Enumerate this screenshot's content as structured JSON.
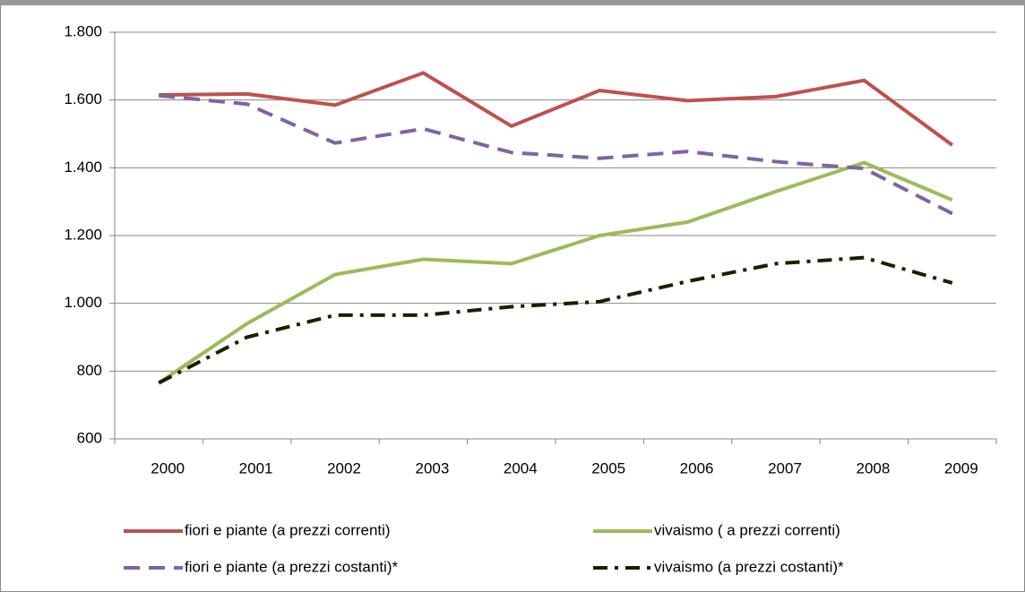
{
  "chart_data": {
    "type": "line",
    "categories": [
      "2000",
      "2001",
      "2002",
      "2003",
      "2004",
      "2005",
      "2006",
      "2007",
      "2008",
      "2009"
    ],
    "series": [
      {
        "name": "fiori e piante (a prezzi correnti)",
        "color": "#c0504d",
        "dash": "solid",
        "values": [
          1615,
          1618,
          1585,
          1680,
          1523,
          1628,
          1598,
          1610,
          1658,
          1467
        ]
      },
      {
        "name": "vivaismo ( a prezzi correnti)",
        "color": "#9bbb59",
        "dash": "solid",
        "values": [
          765,
          940,
          1085,
          1130,
          1117,
          1200,
          1240,
          1330,
          1415,
          1305
        ]
      },
      {
        "name": "fiori e piante (a prezzi costanti)*",
        "color": "#8064a2",
        "dash": "dash",
        "values": [
          1613,
          1588,
          1473,
          1515,
          1445,
          1428,
          1448,
          1418,
          1398,
          1265
        ]
      },
      {
        "name": "vivaismo (a prezzi costanti)*",
        "color": "#1d1d00",
        "dash": "dashdot",
        "values": [
          765,
          900,
          965,
          965,
          990,
          1005,
          1065,
          1117,
          1135,
          1060
        ]
      }
    ],
    "ylim": [
      600,
      1800
    ],
    "yticks": [
      600,
      800,
      {
        "value": 1000,
        "label": "1.000"
      },
      {
        "value": 1200,
        "label": "1.200"
      },
      {
        "value": 1400,
        "label": "1.400"
      },
      {
        "value": 1600,
        "label": "1.600"
      },
      {
        "value": 1800,
        "label": "1.800"
      }
    ],
    "grid": true
  }
}
